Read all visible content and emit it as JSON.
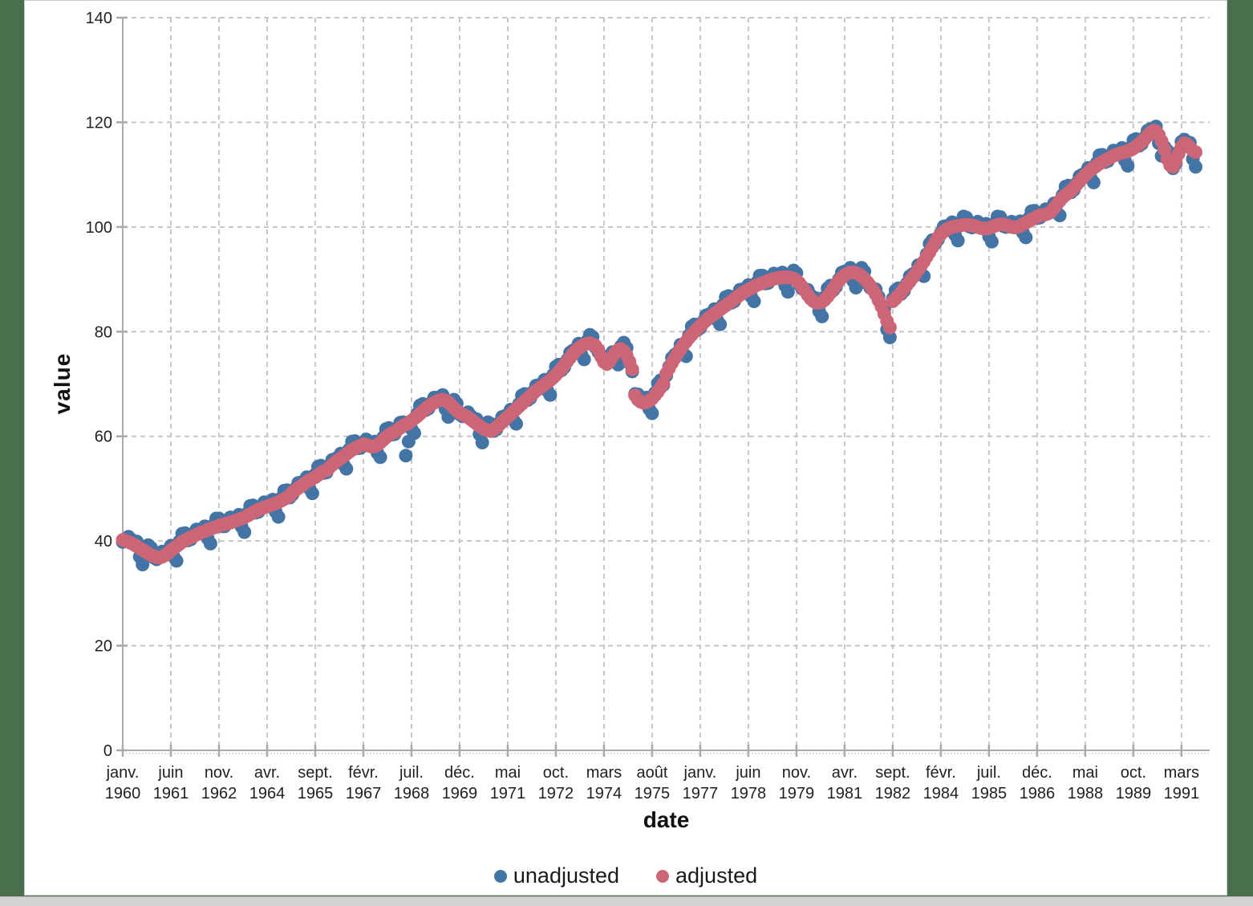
{
  "page": {
    "background_color": "#4a6f4c",
    "panel_color": "#ffffff",
    "taskbar_color": "#d2d2d2"
  },
  "chart_data": {
    "type": "scatter",
    "title": "",
    "xlabel": "date",
    "ylabel": "value",
    "frequency": "monthly",
    "x_start": "janv. 1960",
    "x_end": "août 1991",
    "ylim": [
      0,
      140
    ],
    "y_ticks": [
      0,
      20,
      40,
      60,
      80,
      100,
      120,
      140
    ],
    "grid": "dashed",
    "legend_position": "bottom-center",
    "x_tick_interval_months": 17,
    "x_tick_labels": [
      [
        "janv.",
        "1960"
      ],
      [
        "juin",
        "1961"
      ],
      [
        "nov.",
        "1962"
      ],
      [
        "avr.",
        "1964"
      ],
      [
        "sept.",
        "1965"
      ],
      [
        "févr.",
        "1967"
      ],
      [
        "juil.",
        "1968"
      ],
      [
        "déc.",
        "1969"
      ],
      [
        "mai",
        "1971"
      ],
      [
        "oct.",
        "1972"
      ],
      [
        "mars",
        "1974"
      ],
      [
        "août",
        "1975"
      ],
      [
        "janv.",
        "1977"
      ],
      [
        "juin",
        "1978"
      ],
      [
        "nov.",
        "1979"
      ],
      [
        "avr.",
        "1981"
      ],
      [
        "sept.",
        "1982"
      ],
      [
        "févr.",
        "1984"
      ],
      [
        "juil.",
        "1985"
      ],
      [
        "déc.",
        "1986"
      ],
      [
        "mai",
        "1988"
      ],
      [
        "oct.",
        "1989"
      ],
      [
        "mars",
        "1991"
      ]
    ],
    "series": [
      {
        "name": "unadjusted",
        "color": "#4374a6",
        "values": [
          39.8,
          40.3,
          40.8,
          40.3,
          39.5,
          39.9,
          37.0,
          35.5,
          38.5,
          39.2,
          38.7,
          36.8,
          36.5,
          37.1,
          38.0,
          38.0,
          37.9,
          39.1,
          37.0,
          36.2,
          39.9,
          41.4,
          41.5,
          40.1,
          40.3,
          41.2,
          42.2,
          42.1,
          41.9,
          42.8,
          40.5,
          39.5,
          43.0,
          44.3,
          44.3,
          42.8,
          42.8,
          43.7,
          44.5,
          44.4,
          44.1,
          45.0,
          42.7,
          41.7,
          45.3,
          46.7,
          46.8,
          45.4,
          45.6,
          46.5,
          47.4,
          47.3,
          47.0,
          47.9,
          45.6,
          44.6,
          48.2,
          49.6,
          49.7,
          48.3,
          48.9,
          50.0,
          51.1,
          51.2,
          51.1,
          52.2,
          50.0,
          49.1,
          52.7,
          54.2,
          54.4,
          53.0,
          53.1,
          54.3,
          55.5,
          55.7,
          55.6,
          56.7,
          54.6,
          53.8,
          57.5,
          59.0,
          59.1,
          57.7,
          57.8,
          58.8,
          59.4,
          58.9,
          58.2,
          59.0,
          56.8,
          56.0,
          59.8,
          61.4,
          61.6,
          60.3,
          60.4,
          61.5,
          62.6,
          62.7,
          56.3,
          59.0,
          61.4,
          60.6,
          64.3,
          65.9,
          66.2,
          65.0,
          65.3,
          66.4,
          67.4,
          67.4,
          67.1,
          67.9,
          65.2,
          63.7,
          66.5,
          67.0,
          66.3,
          64.2,
          63.8,
          64.2,
          64.6,
          63.9,
          63.0,
          63.3,
          60.4,
          58.8,
          61.8,
          62.7,
          62.4,
          61.0,
          61.3,
          62.5,
          63.7,
          63.9,
          63.9,
          65.1,
          63.1,
          62.4,
          66.2,
          67.8,
          68.1,
          66.9,
          67.3,
          68.5,
          69.7,
          69.8,
          69.7,
          70.8,
          68.7,
          67.9,
          71.7,
          73.3,
          73.7,
          72.6,
          73.2,
          74.6,
          76.0,
          76.4,
          76.5,
          77.7,
          75.6,
          74.7,
          78.2,
          79.4,
          79.0,
          77.0,
          76.1,
          75.5,
          75.2,
          74.5,
          74.5,
          76.1,
          74.4,
          73.7,
          77.2,
          77.9,
          76.9,
          74.0,
          72.4,
          68.1,
          68.0,
          67.3,
          66.6,
          67.4,
          65.2,
          64.4,
          68.3,
          70.1,
          70.7,
          69.8,
          71.6,
          73.3,
          75.0,
          75.6,
          76.0,
          77.5,
          75.8,
          75.3,
          79.3,
          81.0,
          81.4,
          80.3,
          80.7,
          81.9,
          83.1,
          83.3,
          83.2,
          84.3,
          82.2,
          81.4,
          85.1,
          86.6,
          86.8,
          85.5,
          85.8,
          86.9,
          88.0,
          88.1,
          87.9,
          88.9,
          86.7,
          85.8,
          89.4,
          90.7,
          90.7,
          89.2,
          89.3,
          90.2,
          91.1,
          90.9,
          90.5,
          91.3,
          88.8,
          87.6,
          90.8,
          91.7,
          91.2,
          89.0,
          88.2,
          88.1,
          88.0,
          87.0,
          86.0,
          86.4,
          83.9,
          82.9,
          86.6,
          88.3,
          88.8,
          87.9,
          88.6,
          90.0,
          91.3,
          91.5,
          91.3,
          92.2,
          89.7,
          88.4,
          91.5,
          92.2,
          91.5,
          89.2,
          88.4,
          88.3,
          88.1,
          86.7,
          85.0,
          84.3,
          80.4,
          78.9,
          86.3,
          87.9,
          88.3,
          87.2,
          87.8,
          89.2,
          90.6,
          91.0,
          91.2,
          92.7,
          91.0,
          90.6,
          94.8,
          96.8,
          97.5,
          96.8,
          97.6,
          98.9,
          100.1,
          100.2,
          100.0,
          100.9,
          98.5,
          97.4,
          100.8,
          102.0,
          101.8,
          100.1,
          99.9,
          100.5,
          101.0,
          100.5,
          99.9,
          100.6,
          98.2,
          97.2,
          100.7,
          102.0,
          101.9,
          100.2,
          100.0,
          100.5,
          101.0,
          100.6,
          100.2,
          101.1,
          98.9,
          98.0,
          101.6,
          103.0,
          103.1,
          101.7,
          101.8,
          102.6,
          103.4,
          103.3,
          103.2,
          104.5,
          102.7,
          102.2,
          106.1,
          107.7,
          107.9,
          106.6,
          107.1,
          108.4,
          109.7,
          110.0,
          110.1,
          111.3,
          109.3,
          108.5,
          112.2,
          113.7,
          113.8,
          112.4,
          112.6,
          113.6,
          114.6,
          114.5,
          114.2,
          115.1,
          112.7,
          111.7,
          115.2,
          116.6,
          116.8,
          115.5,
          115.9,
          117.1,
          118.4,
          118.7,
          118.6,
          119.2,
          116.0,
          113.6,
          115.3,
          114.6,
          113.2,
          111.2,
          112.1,
          114.3,
          116.3,
          116.7,
          116.0,
          116.1,
          113.0,
          111.5
        ]
      },
      {
        "name": "adjusted",
        "color": "#cc6677",
        "values": [
          40.2,
          40.0,
          39.8,
          39.6,
          39.3,
          39.0,
          38.6,
          38.3,
          38.0,
          37.6,
          37.3,
          37.1,
          36.9,
          36.8,
          37.0,
          37.3,
          37.7,
          38.2,
          38.6,
          39.0,
          39.4,
          39.8,
          40.1,
          40.4,
          40.7,
          40.9,
          41.2,
          41.4,
          41.7,
          41.9,
          42.1,
          42.3,
          42.5,
          42.7,
          42.9,
          43.1,
          43.2,
          43.4,
          43.5,
          43.7,
          43.9,
          44.1,
          44.3,
          44.5,
          44.8,
          45.1,
          45.4,
          45.7,
          46.0,
          46.2,
          46.4,
          46.6,
          46.8,
          47.0,
          47.2,
          47.4,
          47.7,
          48.0,
          48.3,
          48.6,
          49.3,
          49.7,
          50.1,
          50.5,
          50.9,
          51.3,
          51.6,
          51.9,
          52.2,
          52.6,
          53.0,
          53.3,
          53.5,
          54.0,
          54.5,
          55.0,
          55.4,
          55.8,
          56.2,
          56.6,
          57.0,
          57.4,
          57.7,
          58.0,
          58.2,
          58.5,
          58.4,
          58.2,
          58.0,
          58.1,
          58.4,
          58.8,
          59.3,
          59.8,
          60.2,
          60.6,
          60.8,
          61.2,
          61.6,
          62.0,
          62.3,
          62.5,
          63.0,
          63.4,
          63.8,
          64.3,
          64.8,
          65.3,
          65.7,
          66.1,
          66.4,
          66.7,
          66.9,
          67.0,
          66.8,
          66.5,
          66.0,
          65.4,
          64.9,
          64.5,
          64.2,
          63.9,
          63.6,
          63.2,
          62.8,
          62.4,
          62.0,
          61.6,
          61.3,
          61.1,
          61.0,
          61.3,
          61.7,
          62.2,
          62.7,
          63.2,
          63.7,
          64.2,
          64.7,
          65.2,
          65.7,
          66.2,
          66.7,
          67.2,
          67.7,
          68.2,
          68.7,
          69.1,
          69.5,
          69.9,
          70.3,
          70.7,
          71.2,
          71.7,
          72.3,
          72.9,
          73.6,
          74.3,
          75.0,
          75.7,
          76.3,
          76.8,
          77.2,
          77.5,
          77.7,
          77.8,
          77.6,
          77.3,
          76.5,
          75.2,
          74.2,
          73.8,
          74.3,
          75.2,
          76.0,
          76.5,
          76.7,
          76.3,
          75.5,
          74.3,
          72.8,
          67.8,
          67.0,
          66.6,
          66.4,
          66.5,
          66.8,
          67.2,
          67.8,
          68.5,
          69.3,
          70.1,
          72.0,
          73.0,
          74.0,
          74.9,
          75.8,
          76.6,
          77.4,
          78.1,
          78.8,
          79.4,
          80.0,
          80.6,
          81.1,
          81.6,
          82.1,
          82.6,
          83.0,
          83.4,
          83.8,
          84.2,
          84.6,
          85.0,
          85.4,
          85.8,
          86.2,
          86.6,
          87.0,
          87.4,
          87.7,
          88.0,
          88.3,
          88.6,
          88.9,
          89.1,
          89.3,
          89.5,
          89.7,
          89.9,
          90.1,
          90.2,
          90.3,
          90.4,
          90.4,
          90.4,
          90.3,
          90.1,
          89.8,
          89.3,
          88.6,
          87.8,
          87.0,
          86.3,
          85.8,
          85.5,
          85.5,
          85.7,
          86.1,
          86.7,
          87.4,
          88.2,
          89.0,
          89.7,
          90.3,
          90.8,
          91.1,
          91.3,
          91.3,
          91.2,
          91.0,
          90.6,
          90.1,
          89.5,
          88.8,
          88.0,
          87.1,
          86.0,
          84.8,
          83.4,
          82.0,
          80.8,
          85.8,
          86.3,
          86.9,
          87.5,
          88.2,
          88.9,
          89.6,
          90.3,
          91.0,
          91.8,
          92.6,
          93.4,
          94.3,
          95.2,
          96.1,
          97.1,
          98.0,
          98.6,
          99.1,
          99.5,
          99.8,
          100.0,
          100.1,
          100.2,
          100.3,
          100.4,
          100.4,
          100.4,
          100.3,
          100.2,
          100.0,
          99.8,
          99.7,
          99.7,
          99.8,
          100.0,
          100.2,
          100.4,
          100.5,
          100.5,
          100.4,
          100.2,
          100.0,
          99.9,
          100.0,
          100.2,
          100.5,
          100.8,
          101.1,
          101.4,
          101.7,
          102.0,
          102.2,
          102.3,
          102.4,
          102.6,
          103.0,
          103.6,
          104.3,
          105.0,
          105.6,
          106.1,
          106.5,
          106.9,
          107.5,
          108.1,
          108.7,
          109.3,
          109.9,
          110.4,
          110.9,
          111.3,
          111.7,
          112.1,
          112.4,
          112.7,
          113.0,
          113.3,
          113.6,
          113.8,
          114.0,
          114.2,
          114.3,
          114.5,
          114.7,
          115.0,
          115.4,
          115.8,
          116.3,
          116.8,
          117.4,
          118.0,
          118.4,
          118.3,
          117.6,
          116.4,
          114.8,
          113.0,
          111.8,
          111.5,
          112.5,
          114.0,
          115.3,
          116.0,
          115.8,
          115.2,
          114.6,
          114.3
        ]
      }
    ]
  }
}
